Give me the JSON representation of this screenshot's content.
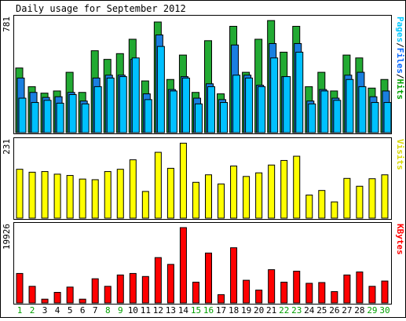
{
  "chart_data": {
    "type": "bar",
    "title": "Daily usage for September 2012",
    "days": [
      "1",
      "2",
      "3",
      "4",
      "5",
      "6",
      "7",
      "8",
      "9",
      "10",
      "11",
      "12",
      "13",
      "14",
      "15",
      "16",
      "17",
      "18",
      "19",
      "20",
      "21",
      "22",
      "23",
      "24",
      "25",
      "26",
      "27",
      "28",
      "29",
      "30"
    ],
    "weekend_days": [
      "1",
      "2",
      "8",
      "9",
      "15",
      "16",
      "22",
      "23",
      "29",
      "30"
    ],
    "weekday_color": "#000000",
    "weekend_color": "#00a000",
    "panels": [
      {
        "id": "hits",
        "max_label": "781",
        "max_value": 781,
        "legend": [
          {
            "text": "Pages",
            "color": "#00c8ff"
          },
          {
            "text": "/",
            "color": "#000000"
          },
          {
            "text": "Files",
            "color": "#0064ff"
          },
          {
            "text": "/",
            "color": "#000000"
          },
          {
            "text": "Hits",
            "color": "#00a000"
          }
        ],
        "series": [
          {
            "name": "Hits",
            "color": "#22aa33",
            "values": [
              450,
              320,
              275,
              290,
              420,
              280,
              570,
              510,
              550,
              650,
              360,
              770,
              370,
              540,
              280,
              640,
              270,
              740,
              420,
              650,
              780,
              560,
              740,
              320,
              420,
              290,
              540,
              520,
              310,
              370
            ]
          },
          {
            "name": "Files",
            "color": "#1a7fe0",
            "values": [
              380,
              280,
              245,
              250,
              280,
              220,
              380,
              400,
              400,
              510,
              270,
              680,
              300,
              390,
              240,
              340,
              230,
              610,
              400,
              330,
              620,
              390,
              620,
              220,
              300,
              240,
              400,
              420,
              250,
              290
            ]
          },
          {
            "name": "Pages",
            "color": "#00c0ff",
            "values": [
              240,
              210,
              225,
              205,
              265,
              200,
              320,
              380,
              390,
              520,
              230,
              600,
              290,
              380,
              200,
              320,
              210,
              400,
              380,
              320,
              520,
              390,
              560,
              200,
              290,
              225,
              370,
              320,
              210,
              210
            ]
          }
        ]
      },
      {
        "id": "visits",
        "max_label": "231",
        "max_value": 231,
        "legend": [
          {
            "text": "Visits",
            "color": "#d8d800"
          }
        ],
        "series": [
          {
            "name": "Visits",
            "color": "#ffff00",
            "values": [
              150,
              141,
              143,
              135,
              131,
              120,
              118,
              143,
              150,
              179,
              82,
              202,
              153,
              230,
              110,
              133,
              105,
              160,
              128,
              139,
              163,
              177,
              190,
              71,
              85,
              50,
              122,
              98,
              121,
              133
            ]
          }
        ]
      },
      {
        "id": "kbytes",
        "max_label": "19926",
        "max_value": 19926,
        "legend": [
          {
            "text": "KBytes",
            "color": "#ff0000"
          }
        ],
        "series": [
          {
            "name": "KBytes",
            "color": "#ff0000",
            "values": [
              7800,
              4400,
              1000,
              2800,
              4200,
              1000,
              6400,
              4400,
              7400,
              7800,
              7000,
              12000,
              10200,
              19926,
              5500,
              13200,
              2200,
              14600,
              6000,
              3400,
              8800,
              5500,
              8400,
              5200,
              5400,
              3000,
              7400,
              8200,
              4400,
              5800
            ]
          }
        ]
      }
    ]
  }
}
